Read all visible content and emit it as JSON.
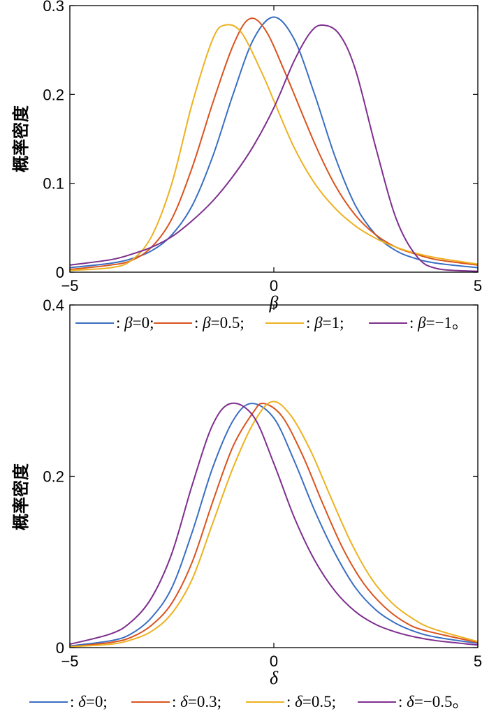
{
  "chart_data": [
    {
      "type": "line",
      "xlabel": "β",
      "ylabel": "概率密度",
      "xlim": [
        -5,
        5
      ],
      "ylim": [
        0,
        0.3
      ],
      "xticks": [
        "−5",
        "0",
        "5"
      ],
      "yticks": [
        "0",
        "0.1",
        "0.2",
        "0.3"
      ],
      "legend_position": "bottom",
      "series": [
        {
          "name": ": β=0;",
          "symbol": "β",
          "value_text": "=0;",
          "color": "#3a6ec2",
          "x": [
            -5,
            -4,
            -3.5,
            -3,
            -2.5,
            -2,
            -1.5,
            -1,
            -0.5,
            0,
            0.5,
            1,
            1.5,
            2,
            2.5,
            3,
            3.5,
            4,
            5
          ],
          "y": [
            0.005,
            0.01,
            0.015,
            0.024,
            0.042,
            0.075,
            0.13,
            0.2,
            0.262,
            0.287,
            0.262,
            0.2,
            0.13,
            0.075,
            0.042,
            0.024,
            0.015,
            0.01,
            0.005
          ]
        },
        {
          "name": ": β=0.5;",
          "symbol": "β",
          "value_text": "=0.5;",
          "color": "#d9531e",
          "x": [
            -5,
            -4,
            -3.5,
            -3,
            -2.5,
            -2,
            -1.5,
            -1,
            -0.6,
            -0.2,
            0.3,
            1,
            1.5,
            2,
            2.5,
            3,
            3.5,
            4,
            5
          ],
          "y": [
            0.003,
            0.008,
            0.013,
            0.028,
            0.06,
            0.118,
            0.19,
            0.255,
            0.285,
            0.272,
            0.222,
            0.145,
            0.098,
            0.064,
            0.042,
            0.028,
            0.02,
            0.014,
            0.008
          ]
        },
        {
          "name": ": β=1;",
          "symbol": "β",
          "value_text": "=1;",
          "color": "#edb120",
          "x": [
            -5,
            -4,
            -3.5,
            -3,
            -2.5,
            -2,
            -1.5,
            -1.2,
            -0.8,
            -0.3,
            0,
            0.5,
            1,
            1.5,
            2,
            2.5,
            3,
            3.5,
            4,
            5
          ],
          "y": [
            0.002,
            0.005,
            0.013,
            0.04,
            0.1,
            0.19,
            0.262,
            0.278,
            0.27,
            0.225,
            0.193,
            0.14,
            0.1,
            0.072,
            0.052,
            0.038,
            0.028,
            0.021,
            0.016,
            0.009
          ]
        },
        {
          "name": ": β=−1。",
          "symbol": "β",
          "value_text": "=−1。",
          "color": "#7e2f8e",
          "x": [
            -5,
            -4,
            -3.5,
            -3,
            -2.5,
            -2,
            -1.5,
            -1,
            -0.5,
            0,
            0.5,
            0.9,
            1.2,
            1.6,
            2,
            2.5,
            3,
            3.5,
            4,
            5
          ],
          "y": [
            0.008,
            0.014,
            0.02,
            0.028,
            0.04,
            0.058,
            0.08,
            0.108,
            0.142,
            0.185,
            0.238,
            0.27,
            0.278,
            0.268,
            0.228,
            0.14,
            0.06,
            0.018,
            0.004,
            0.001
          ]
        }
      ]
    },
    {
      "type": "line",
      "xlabel": "δ",
      "ylabel": "概率密度",
      "xlim": [
        -5,
        5
      ],
      "ylim": [
        0,
        0.4
      ],
      "xticks": [
        "−5",
        "0",
        "5"
      ],
      "yticks": [
        "0",
        "0.2",
        "0.4"
      ],
      "legend_position": "bottom",
      "series": [
        {
          "name": ": δ=0;",
          "symbol": "δ",
          "value_text": "=0;",
          "color": "#3a6ec2",
          "x": [
            -5,
            -4,
            -3.5,
            -3,
            -2.5,
            -2,
            -1.5,
            -1,
            -0.55,
            0,
            0.5,
            1,
            1.5,
            2,
            2.5,
            3,
            3.5,
            4,
            5
          ],
          "y": [
            0.002,
            0.008,
            0.016,
            0.035,
            0.07,
            0.135,
            0.21,
            0.265,
            0.285,
            0.268,
            0.218,
            0.16,
            0.11,
            0.07,
            0.044,
            0.028,
            0.018,
            0.012,
            0.005
          ]
        },
        {
          "name": ": δ=0.3;",
          "symbol": "δ",
          "value_text": "=0.3;",
          "color": "#d9531e",
          "x": [
            -5,
            -4,
            -3.5,
            -3,
            -2.5,
            -2,
            -1.5,
            -1,
            -0.5,
            -0.25,
            0.2,
            0.7,
            1.2,
            1.7,
            2.2,
            2.7,
            3.2,
            3.7,
            5
          ],
          "y": [
            0.001,
            0.006,
            0.012,
            0.026,
            0.052,
            0.1,
            0.17,
            0.235,
            0.275,
            0.285,
            0.27,
            0.225,
            0.168,
            0.115,
            0.075,
            0.048,
            0.03,
            0.02,
            0.006
          ]
        },
        {
          "name": ": δ=0.5;",
          "symbol": "δ",
          "value_text": "=0.5;",
          "color": "#edb120",
          "x": [
            -5,
            -4,
            -3.5,
            -3,
            -2.5,
            -2,
            -1.5,
            -1,
            -0.5,
            -0.05,
            0.4,
            0.9,
            1.4,
            1.9,
            2.4,
            2.9,
            3.4,
            3.9,
            5
          ],
          "y": [
            0.001,
            0.004,
            0.009,
            0.019,
            0.04,
            0.08,
            0.145,
            0.21,
            0.262,
            0.287,
            0.272,
            0.23,
            0.175,
            0.122,
            0.08,
            0.052,
            0.034,
            0.022,
            0.007
          ]
        },
        {
          "name": ": δ=−0.5。",
          "symbol": "δ",
          "value_text": "=−0.5。",
          "color": "#7e2f8e",
          "x": [
            -5,
            -4,
            -3.5,
            -3,
            -2.5,
            -2,
            -1.5,
            -1.05,
            -0.5,
            0,
            0.5,
            1,
            1.5,
            2,
            2.5,
            3,
            3.5,
            4,
            5
          ],
          "y": [
            0.004,
            0.016,
            0.03,
            0.058,
            0.11,
            0.19,
            0.26,
            0.285,
            0.27,
            0.215,
            0.152,
            0.102,
            0.066,
            0.042,
            0.027,
            0.018,
            0.012,
            0.008,
            0.003
          ]
        }
      ]
    }
  ]
}
